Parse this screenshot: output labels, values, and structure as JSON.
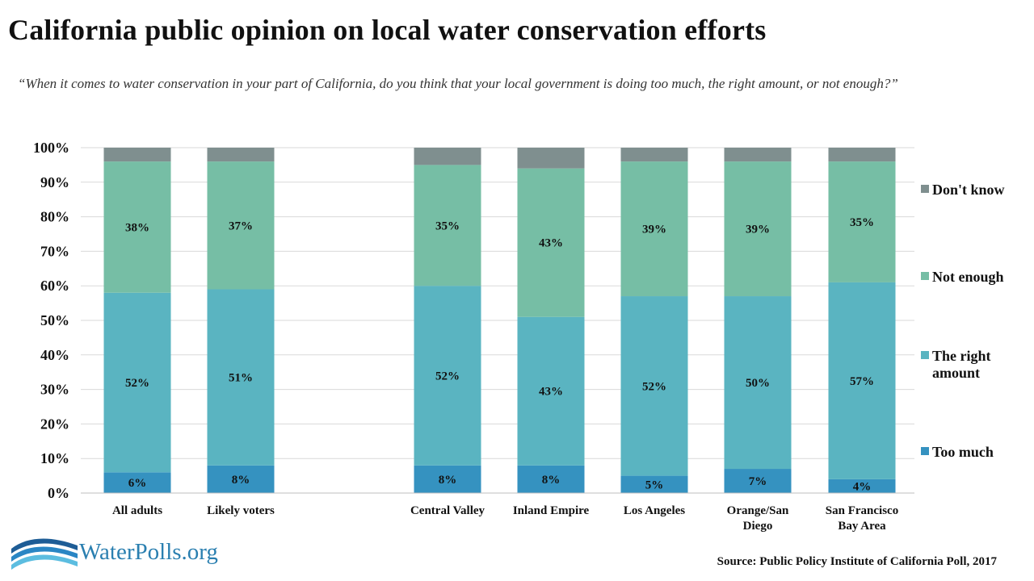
{
  "title": "California public opinion on local water conservation efforts",
  "subtitle": "“When it comes to water conservation in your part of  California, do you think that your local government is doing too much, the right amount, or not enough?”",
  "source": "Source: Public Policy Institute of California Poll, 2017",
  "logo_text": "WaterPolls.org",
  "chart_data": {
    "type": "bar",
    "stacked": true,
    "categories": [
      "All adults",
      "Likely voters",
      "Central Valley",
      "Inland Empire",
      "Los Angeles",
      "Orange/San Diego",
      "San Francisco Bay Area"
    ],
    "category_labels": [
      [
        "All adults"
      ],
      [
        "Likely voters"
      ],
      [
        "Central Valley"
      ],
      [
        "Inland Empire"
      ],
      [
        "Los Angeles"
      ],
      [
        "Orange/San",
        "Diego"
      ],
      [
        "San Francisco",
        "Bay Area"
      ]
    ],
    "series": [
      {
        "name": "Too much",
        "color": "#3592c0",
        "values": [
          6,
          8,
          8,
          8,
          5,
          7,
          4
        ]
      },
      {
        "name": "The right amount",
        "color": "#5ab4c1",
        "values": [
          52,
          51,
          52,
          43,
          52,
          50,
          57
        ]
      },
      {
        "name": "Not enough",
        "color": "#76bea5",
        "values": [
          38,
          37,
          35,
          43,
          39,
          39,
          35
        ]
      },
      {
        "name": "Don't know",
        "color": "#7f8f8f",
        "values": [
          4,
          4,
          5,
          6,
          4,
          4,
          4
        ]
      }
    ],
    "data_labels": [
      [
        "6%",
        "8%",
        "8%",
        "8%",
        "5%",
        "7%",
        "4%"
      ],
      [
        "52%",
        "51%",
        "52%",
        "43%",
        "52%",
        "50%",
        "57%"
      ],
      [
        "38%",
        "37%",
        "35%",
        "43%",
        "39%",
        "39%",
        "35%"
      ],
      [
        "",
        "",
        "",
        "",
        "",
        "",
        ""
      ]
    ],
    "legend": [
      {
        "label": [
          "Don't know"
        ],
        "color": "#7f8f8f"
      },
      {
        "label": [
          "Not enough"
        ],
        "color": "#76bea5"
      },
      {
        "label": [
          "The right",
          "amount"
        ],
        "color": "#5ab4c1"
      },
      {
        "label": [
          "Too much"
        ],
        "color": "#3592c0"
      }
    ],
    "legend_position": "right",
    "y_ticks": [
      "0%",
      "10%",
      "20%",
      "30%",
      "40%",
      "50%",
      "60%",
      "70%",
      "80%",
      "90%",
      "100%"
    ],
    "ylim": [
      0,
      100
    ],
    "grid": true
  }
}
